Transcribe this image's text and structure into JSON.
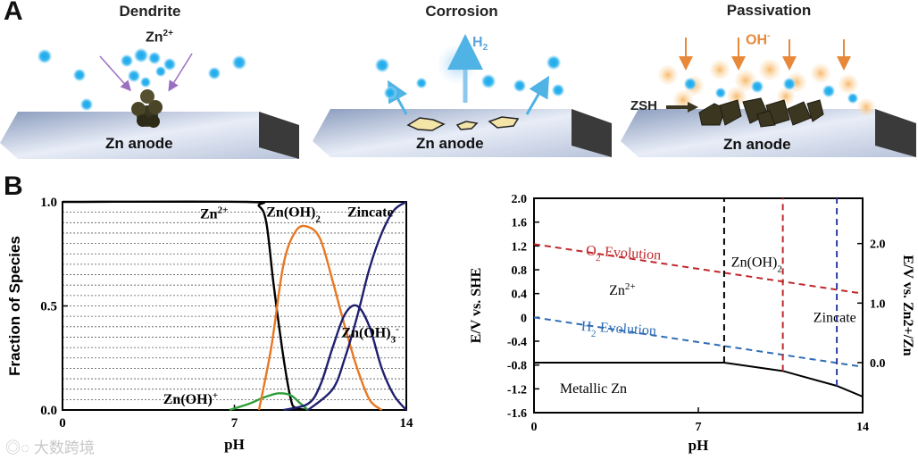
{
  "panel_a": {
    "letter": "A",
    "scenes": [
      {
        "title": "Dendrite",
        "ion_label": "Zn",
        "ion_charge": "2+",
        "anode_label": "Zn anode"
      },
      {
        "title": "Corrosion",
        "gas_label": "H",
        "gas_sub": "2",
        "anode_label": "Zn anode"
      },
      {
        "title": "Passivation",
        "ion_label": "OH",
        "ion_charge": "-",
        "product_label": "ZSH",
        "anode_label": "Zn anode"
      }
    ]
  },
  "panel_b": {
    "letter": "B"
  },
  "chart_data": [
    {
      "type": "line",
      "title": "",
      "xlabel": "pH",
      "ylabel": "Fraction of Species",
      "xlim": [
        0,
        14
      ],
      "ylim": [
        0,
        1.0
      ],
      "x_ticks": [
        "0",
        "7",
        "14"
      ],
      "y_ticks": [
        "0.0",
        "0.5",
        "1.0"
      ],
      "grid": "horizontal dotted",
      "series": [
        {
          "name": "Zn2+",
          "label": "Zn",
          "label_sup": "2+",
          "color": "#000000",
          "x": [
            0,
            7.5,
            8.0,
            8.3,
            8.6,
            9.0,
            9.3,
            9.5,
            10
          ],
          "y": [
            1.0,
            1.0,
            0.98,
            0.9,
            0.6,
            0.25,
            0.05,
            0.01,
            0.0
          ]
        },
        {
          "name": "Zn(OH)+",
          "label": "Zn(OH)",
          "label_sup": "+",
          "color": "#2e9e3a",
          "x": [
            6.8,
            7.6,
            8.2,
            8.8,
            9.3,
            9.7,
            10.0
          ],
          "y": [
            0.0,
            0.03,
            0.06,
            0.08,
            0.07,
            0.03,
            0.0
          ]
        },
        {
          "name": "Zn(OH)2",
          "label": "Zn(OH)",
          "label_sub": "2",
          "color": "#e87722",
          "x": [
            8.0,
            8.5,
            9.0,
            9.5,
            10.0,
            10.5,
            11.0,
            11.5,
            12.0,
            12.5,
            13.0
          ],
          "y": [
            0.0,
            0.3,
            0.7,
            0.86,
            0.88,
            0.82,
            0.62,
            0.4,
            0.2,
            0.05,
            0.0
          ]
        },
        {
          "name": "Zn(OH)3-",
          "label": "Zn(OH)",
          "label_sub": "3",
          "label_sup": "-",
          "color": "#1f1f6e",
          "x": [
            9.0,
            10.0,
            10.5,
            11.0,
            11.5,
            12.0,
            12.5,
            13.0,
            13.5,
            14.0
          ],
          "y": [
            0.0,
            0.03,
            0.12,
            0.3,
            0.46,
            0.5,
            0.4,
            0.2,
            0.07,
            0.0
          ]
        },
        {
          "name": "Zincate",
          "label": "Zincate",
          "color": "#1f1f6e",
          "x": [
            10.0,
            11.0,
            11.5,
            12.0,
            12.5,
            13.0,
            13.5,
            14.0
          ],
          "y": [
            0.0,
            0.1,
            0.25,
            0.45,
            0.68,
            0.85,
            0.96,
            1.0
          ]
        }
      ]
    },
    {
      "type": "line",
      "title": "",
      "xlabel": "pH",
      "ylabel": "E/V vs. SHE",
      "ylabel_right": "E/V vs. Zn2+/Zn",
      "xlim": [
        0,
        14
      ],
      "ylim": [
        -1.6,
        2.0
      ],
      "x_ticks": [
        "0",
        "7",
        "14"
      ],
      "y_ticks": [
        "-1.6",
        "-1.2",
        "-0.8",
        "-0.4",
        "0",
        "0.4",
        "0.8",
        "1.2",
        "1.6",
        "2.0"
      ],
      "y2_ticks": [
        "0.0",
        "1.0",
        "2.0"
      ],
      "series": [
        {
          "name": "O2 Evolution",
          "label": "O",
          "label_sub": "2",
          "label_rest": " Evolution",
          "color": "#c0282d",
          "style": "dashed",
          "x": [
            0,
            14
          ],
          "y": [
            1.23,
            0.4
          ]
        },
        {
          "name": "H2 Evolution",
          "label": "H",
          "label_sub": "2",
          "label_rest": " Evolution",
          "color": "#2f6db5",
          "style": "dashed",
          "x": [
            0,
            14
          ],
          "y": [
            0.0,
            -0.83
          ]
        },
        {
          "name": "Metallic Zn boundary",
          "color": "#000000",
          "style": "solid",
          "x": [
            0,
            8.1,
            10.6,
            12.9,
            14
          ],
          "y": [
            -0.76,
            -0.76,
            -0.9,
            -1.15,
            -1.33
          ]
        },
        {
          "name": "Zn2+/Zn(OH)2 boundary",
          "color": "#000000",
          "style": "dashed",
          "x": [
            8.1,
            8.1
          ],
          "y": [
            -0.76,
            2.0
          ]
        },
        {
          "name": "Zn(OH)2/Zincate boundary (red)",
          "color": "#c0282d",
          "style": "dashed",
          "x": [
            10.6,
            10.6
          ],
          "y": [
            -0.9,
            2.0
          ]
        },
        {
          "name": "Zn(OH)2/Zincate boundary (blue)",
          "color": "#2f3f9e",
          "style": "dashed",
          "x": [
            12.9,
            12.9
          ],
          "y": [
            -1.15,
            2.0
          ]
        }
      ],
      "region_labels": [
        {
          "text": "Zn",
          "sup": "2+"
        },
        {
          "text": "Zn(OH)",
          "sub": "2"
        },
        {
          "text": "Zincate"
        },
        {
          "text": "Metallic Zn"
        }
      ]
    }
  ],
  "watermark": "大数跨境"
}
